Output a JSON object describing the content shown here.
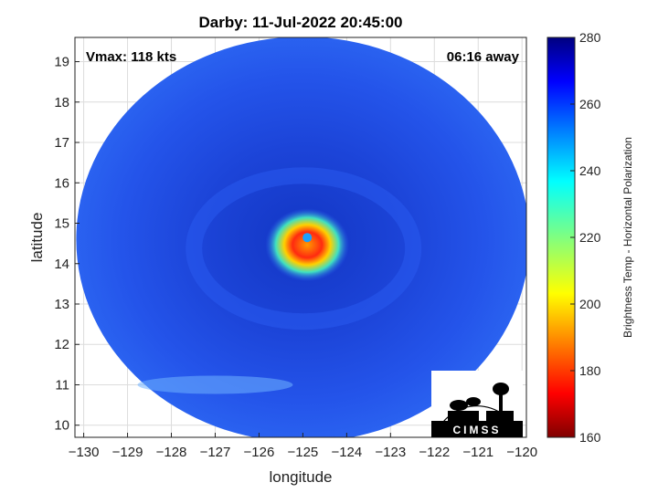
{
  "title": "Darby: 11-Jul-2022 20:45:00",
  "vmax_label": "Vmax: 118 kts",
  "away_label": "06:16 away",
  "logo_text": "CIMSS",
  "map": {
    "xlabel": "longitude",
    "ylabel": "latitude",
    "xlim": [
      -130.2,
      -119.9
    ],
    "ylim": [
      9.7,
      19.6
    ],
    "xticks": [
      -130,
      -129,
      -128,
      -127,
      -126,
      -125,
      -124,
      -123,
      -122,
      -121,
      -120
    ],
    "yticks": [
      10,
      11,
      12,
      13,
      14,
      15,
      16,
      17,
      18,
      19
    ],
    "grid": true,
    "swath_center": {
      "lon": -125.0,
      "lat": 14.6
    },
    "eye_center": {
      "lon": -124.9,
      "lat": 14.6
    }
  },
  "colorbar": {
    "label": "Brightness Temp - Horizontal Polarization",
    "min": 160,
    "max": 280,
    "ticks": [
      160,
      180,
      200,
      220,
      240,
      260,
      280
    ],
    "colormap": "jet"
  },
  "colors": {
    "background_swath": "#1f3fe0",
    "eye": "#1aa0ff",
    "eyewall": "#ff3a10"
  }
}
